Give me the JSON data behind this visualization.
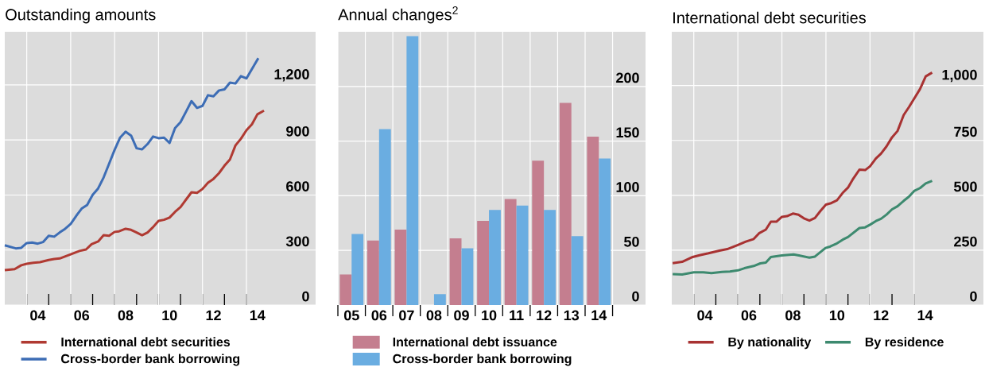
{
  "chart_data": [
    {
      "type": "line",
      "title": "Outstanding amounts",
      "xlim": [
        2.5,
        16.65
      ],
      "ylim": [
        0,
        1490
      ],
      "xticks": [
        {
          "value": 4,
          "label": "04"
        },
        {
          "value": 6,
          "label": "06"
        },
        {
          "value": 8,
          "label": "08"
        },
        10,
        12,
        14
      ],
      "yticks": [
        0,
        300,
        600,
        900,
        {
          "value": 1200,
          "label": "1,200"
        }
      ],
      "grid": true,
      "legend": "bottom",
      "series": [
        {
          "name": "International debt securities",
          "color": "#b03a32",
          "x": [
            2.5,
            2.95,
            3.25,
            3.5,
            3.8,
            4.1,
            4.5,
            4.75,
            5.0,
            5.5,
            5.9,
            6.2,
            6.45,
            6.75,
            7.0,
            7.25,
            7.5,
            7.7,
            8.0,
            8.25,
            8.5,
            8.75,
            9.0,
            9.25,
            9.5,
            9.75,
            10.0,
            10.25,
            10.5,
            10.75,
            11.0,
            11.25,
            11.5,
            11.75,
            12.0,
            12.25,
            12.5,
            12.75,
            13.0,
            13.25,
            13.5,
            13.75,
            14.0,
            14.3
          ],
          "values": [
            191,
            196,
            217,
            225,
            231,
            234,
            246,
            251,
            254,
            277,
            295,
            303,
            332,
            347,
            381,
            378,
            399,
            402,
            416,
            410,
            396,
            381,
            396,
            425,
            459,
            465,
            477,
            508,
            534,
            575,
            615,
            612,
            633,
            667,
            688,
            719,
            760,
            794,
            870,
            907,
            953,
            985,
            1040,
            1060
          ]
        },
        {
          "name": "Cross-border bank borrowing",
          "color": "#3d6db5",
          "x": [
            2.5,
            3.0,
            3.25,
            3.5,
            3.75,
            4.0,
            4.25,
            4.5,
            4.75,
            5.0,
            5.25,
            5.5,
            5.8,
            6.0,
            6.25,
            6.5,
            6.75,
            7.0,
            7.25,
            7.5,
            7.75,
            8.0,
            8.25,
            8.5,
            8.75,
            9.0,
            9.25,
            9.5,
            9.75,
            10.0,
            10.25,
            10.5,
            10.75,
            11.0,
            11.25,
            11.5,
            11.75,
            12.0,
            12.25,
            12.5,
            12.75,
            13.0,
            13.25,
            13.5,
            14.04
          ],
          "values": [
            326,
            309,
            312,
            338,
            341,
            335,
            344,
            378,
            373,
            396,
            416,
            442,
            494,
            526,
            546,
            601,
            636,
            696,
            771,
            846,
            913,
            945,
            924,
            855,
            849,
            878,
            919,
            910,
            913,
            884,
            965,
            997,
            1054,
            1112,
            1075,
            1086,
            1144,
            1138,
            1170,
            1176,
            1213,
            1208,
            1248,
            1236,
            1346
          ]
        }
      ]
    },
    {
      "type": "bar",
      "title": "Annual changes$^{2}$",
      "categories": [
        "05",
        "06",
        "07",
        "08",
        "09",
        "10",
        "11",
        "12",
        "13",
        "14"
      ],
      "ylim": [
        0,
        250
      ],
      "yticks": [
        0,
        50,
        100,
        150,
        200
      ],
      "grid": true,
      "legend": "bottom",
      "series": [
        {
          "name": "International debt issuance",
          "color": "#c47e8f",
          "values": [
            28,
            59,
            69,
            null,
            61,
            77,
            97,
            132,
            185,
            154
          ]
        },
        {
          "name": "Cross-border bank borrowing",
          "color": "#6aade1",
          "values": [
            65,
            161,
            246,
            10,
            52,
            87,
            91,
            87,
            63,
            134
          ]
        }
      ]
    },
    {
      "type": "line",
      "title": "International debt securities",
      "xlim": [
        2.5,
        16.65
      ],
      "ylim": [
        0,
        1245
      ],
      "xticks": [
        {
          "value": 4,
          "label": "04"
        },
        {
          "value": 6,
          "label": "06"
        },
        {
          "value": 8,
          "label": "08"
        },
        10,
        12,
        14
      ],
      "yticks": [
        0,
        250,
        500,
        750,
        {
          "value": 1000,
          "label": "1,000"
        }
      ],
      "grid": true,
      "legend": "bottom",
      "series": [
        {
          "name": "By nationality",
          "color": "#a83232",
          "x": [
            2.54,
            2.97,
            3.45,
            3.8,
            4.17,
            4.66,
            5.02,
            5.5,
            5.86,
            6.22,
            6.46,
            6.77,
            7.0,
            7.25,
            7.5,
            7.73,
            8.0,
            8.25,
            8.5,
            8.75,
            9.0,
            9.25,
            9.5,
            9.7,
            10.0,
            10.26,
            10.5,
            10.74,
            11.02,
            11.28,
            11.5,
            11.77,
            12.0,
            12.25,
            12.5,
            12.75,
            13.03,
            13.27,
            13.52,
            13.77,
            14.03,
            14.32
          ],
          "values": [
            191,
            197,
            219,
            228,
            236,
            248,
            255,
            274,
            289,
            301,
            327,
            344,
            380,
            380,
            402,
            405,
            417,
            412,
            395,
            385,
            397,
            429,
            458,
            463,
            477,
            511,
            535,
            576,
            617,
            615,
            632,
            668,
            690,
            723,
            764,
            793,
            866,
            902,
            943,
            984,
            1042,
            1059
          ]
        },
        {
          "name": "By residence",
          "color": "#3d8a6f",
          "x": [
            2.54,
            2.97,
            3.5,
            3.93,
            4.3,
            4.78,
            5.14,
            5.5,
            5.8,
            6.22,
            6.52,
            6.77,
            7.0,
            7.5,
            8.03,
            8.27,
            8.75,
            9.0,
            9.48,
            9.7,
            9.96,
            10.26,
            10.5,
            11.02,
            11.28,
            11.5,
            11.77,
            12.0,
            12.25,
            12.5,
            12.75,
            13.03,
            13.27,
            13.52,
            13.77,
            14.03,
            14.32
          ],
          "values": [
            141,
            139,
            149,
            149,
            146,
            151,
            153,
            158,
            168,
            178,
            190,
            194,
            219,
            226,
            231,
            226,
            216,
            221,
            260,
            267,
            279,
            298,
            310,
            351,
            354,
            366,
            383,
            393,
            412,
            436,
            450,
            475,
            494,
            521,
            533,
            554,
            566
          ]
        }
      ]
    }
  ]
}
